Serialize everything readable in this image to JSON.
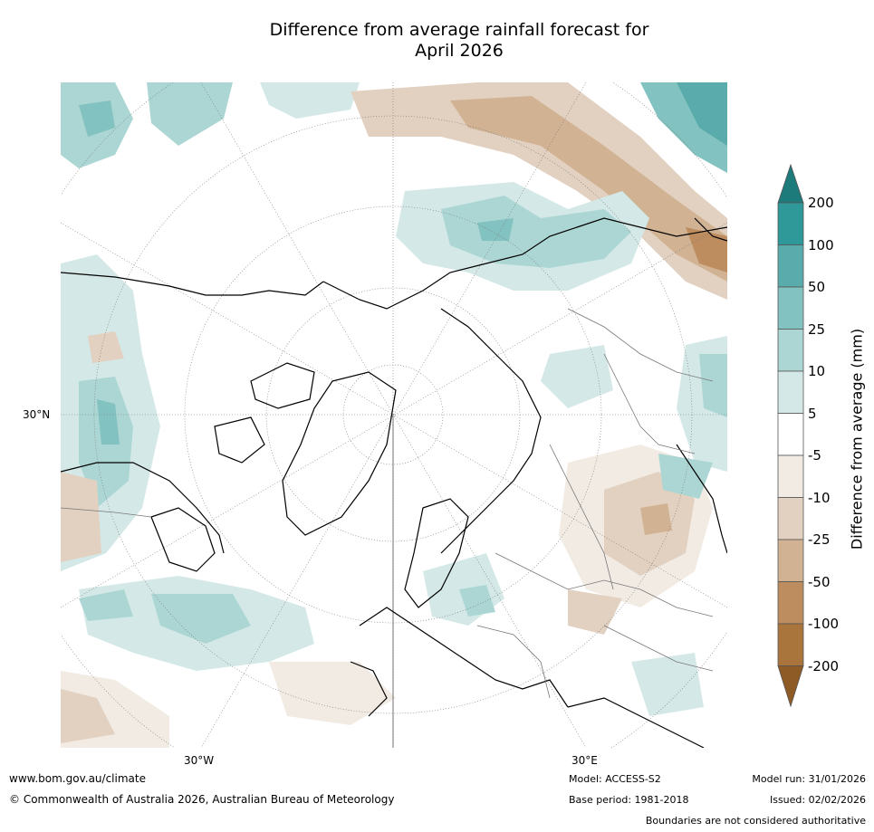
{
  "title": {
    "line1": "Difference from average rainfall forecast for",
    "line2": "April 2026"
  },
  "map": {
    "projection": "north-polar-stereographic",
    "lat_label": "30°N",
    "lon_labels": [
      "30°W",
      "30°E"
    ]
  },
  "colorbar": {
    "label": "Difference from average (mm)",
    "ticks": [
      "200",
      "100",
      "50",
      "25",
      "10",
      "5",
      "-5",
      "-10",
      "-25",
      "-50",
      "-100",
      "-200"
    ],
    "colors": {
      "c_gt200": "#1e7b7b",
      "c_100_200": "#2f9999",
      "c_50_100": "#5aabab",
      "c_25_50": "#82c2c0",
      "c_10_25": "#acd6d4",
      "c_5_10": "#d4e9e7",
      "c_neutral": "#ffffff",
      "c_m5_m10": "#f1ebe4",
      "c_m10_m25": "#e2d1c1",
      "c_m25_m50": "#d1b293",
      "c_m50_m100": "#bd8d5f",
      "c_m100_m200": "#aa743d",
      "c_lt_m200": "#8e5a25"
    }
  },
  "footer": {
    "website": "www.bom.gov.au/climate",
    "copyright": "© Commonwealth of Australia 2026, Australian Bureau of Meteorology",
    "model": "Model: ACCESS-S2",
    "base_period": "Base period: 1981-2018",
    "model_run": "Model run: 31/01/2026",
    "issued": "Issued: 02/02/2026",
    "disclaimer": "Boundaries are not considered authoritative"
  }
}
